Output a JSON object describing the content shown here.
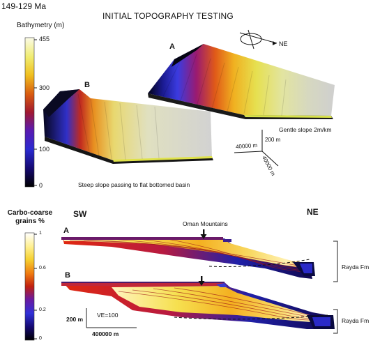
{
  "header": {
    "age_range": "149-129 Ma",
    "title": "INITIAL TOPOGRAPHY TESTING"
  },
  "top_panel": {
    "colorbar": {
      "label": "Bathymetry (m)",
      "ticks": [
        "455",
        "300",
        "100",
        "0"
      ]
    },
    "model_a": {
      "label": "A",
      "caption": "Gentle slope 2m/km"
    },
    "model_b": {
      "label": "B",
      "caption": "Steep slope passing to flat bottomed basin"
    },
    "compass": {
      "direction": "NE"
    },
    "axes_triad": {
      "x": "40000 m",
      "y": "40000 m",
      "z": "200 m"
    }
  },
  "bottom_panel": {
    "colorbar": {
      "label": [
        "Carbo-coarse",
        "grains %"
      ],
      "ticks": [
        "1",
        "0.6",
        "0.2",
        "0"
      ]
    },
    "sw_label": "SW",
    "ne_label": "NE",
    "oman_label": "Oman Mountains",
    "section_a": {
      "label": "A",
      "unit": "Rayda Fm"
    },
    "section_b": {
      "label": "B",
      "unit": "Rayda Fm"
    },
    "scale": {
      "vertical": "200 m",
      "horizontal": "400000 m",
      "ve": "VE=100"
    }
  },
  "colors": {
    "bathymetry_ramp": [
      "#000000",
      "#1a0a8a",
      "#3a34d8",
      "#7a1a9a",
      "#b01818",
      "#e07a10",
      "#f2d020",
      "#ecec98",
      "#ffffff"
    ],
    "grains_ramp": [
      "#000000",
      "#1a0a8a",
      "#3a34d8",
      "#7a1a9a",
      "#c02010",
      "#f08a10",
      "#f6e040",
      "#fff6c0",
      "#ffffff"
    ]
  }
}
